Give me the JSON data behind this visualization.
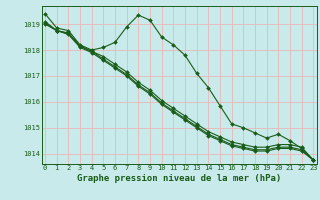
{
  "background_color": "#c8eaea",
  "grid_color": "#e8b8b8",
  "line_color": "#1a5c1a",
  "marker": "D",
  "marker_size": 2.0,
  "line_width": 0.8,
  "xlabel": "Graphe pression niveau de la mer (hPa)",
  "xlabel_fontsize": 6.5,
  "xlabel_color": "#1a5c1a",
  "tick_fontsize": 5.0,
  "yticks": [
    1014,
    1015,
    1016,
    1017,
    1018,
    1019
  ],
  "xtick_labels": [
    "0",
    "1",
    "2",
    "3",
    "4",
    "5",
    "6",
    "7",
    "8",
    "9",
    "10",
    "11",
    "12",
    "13",
    "14",
    "15",
    "16",
    "17",
    "18",
    "19",
    "20",
    "21",
    "22",
    "23"
  ],
  "ylim": [
    1013.6,
    1019.7
  ],
  "xlim": [
    -0.3,
    23.3
  ],
  "series": [
    [
      1019.4,
      1018.85,
      1018.75,
      1018.2,
      1018.0,
      1018.1,
      1018.3,
      1018.9,
      1019.35,
      1019.15,
      1018.5,
      1018.2,
      1017.8,
      1017.1,
      1016.55,
      1015.85,
      1015.15,
      1015.0,
      1014.8,
      1014.6,
      1014.75,
      1014.5,
      1014.2,
      1013.75
    ],
    [
      1019.0,
      1018.75,
      1018.65,
      1018.15,
      1017.95,
      1017.75,
      1017.45,
      1017.15,
      1016.75,
      1016.45,
      1016.05,
      1015.75,
      1015.45,
      1015.15,
      1014.85,
      1014.65,
      1014.45,
      1014.35,
      1014.25,
      1014.25,
      1014.35,
      1014.35,
      1014.25,
      1013.75
    ],
    [
      1019.05,
      1018.75,
      1018.65,
      1018.15,
      1017.95,
      1017.65,
      1017.35,
      1017.05,
      1016.65,
      1016.35,
      1015.95,
      1015.65,
      1015.35,
      1015.05,
      1014.75,
      1014.55,
      1014.35,
      1014.25,
      1014.15,
      1014.15,
      1014.25,
      1014.25,
      1014.15,
      1013.75
    ],
    [
      1019.1,
      1018.75,
      1018.6,
      1018.1,
      1017.9,
      1017.6,
      1017.3,
      1017.0,
      1016.6,
      1016.3,
      1015.9,
      1015.6,
      1015.3,
      1015.0,
      1014.7,
      1014.5,
      1014.3,
      1014.2,
      1014.1,
      1014.1,
      1014.2,
      1014.2,
      1014.1,
      1013.75
    ]
  ]
}
